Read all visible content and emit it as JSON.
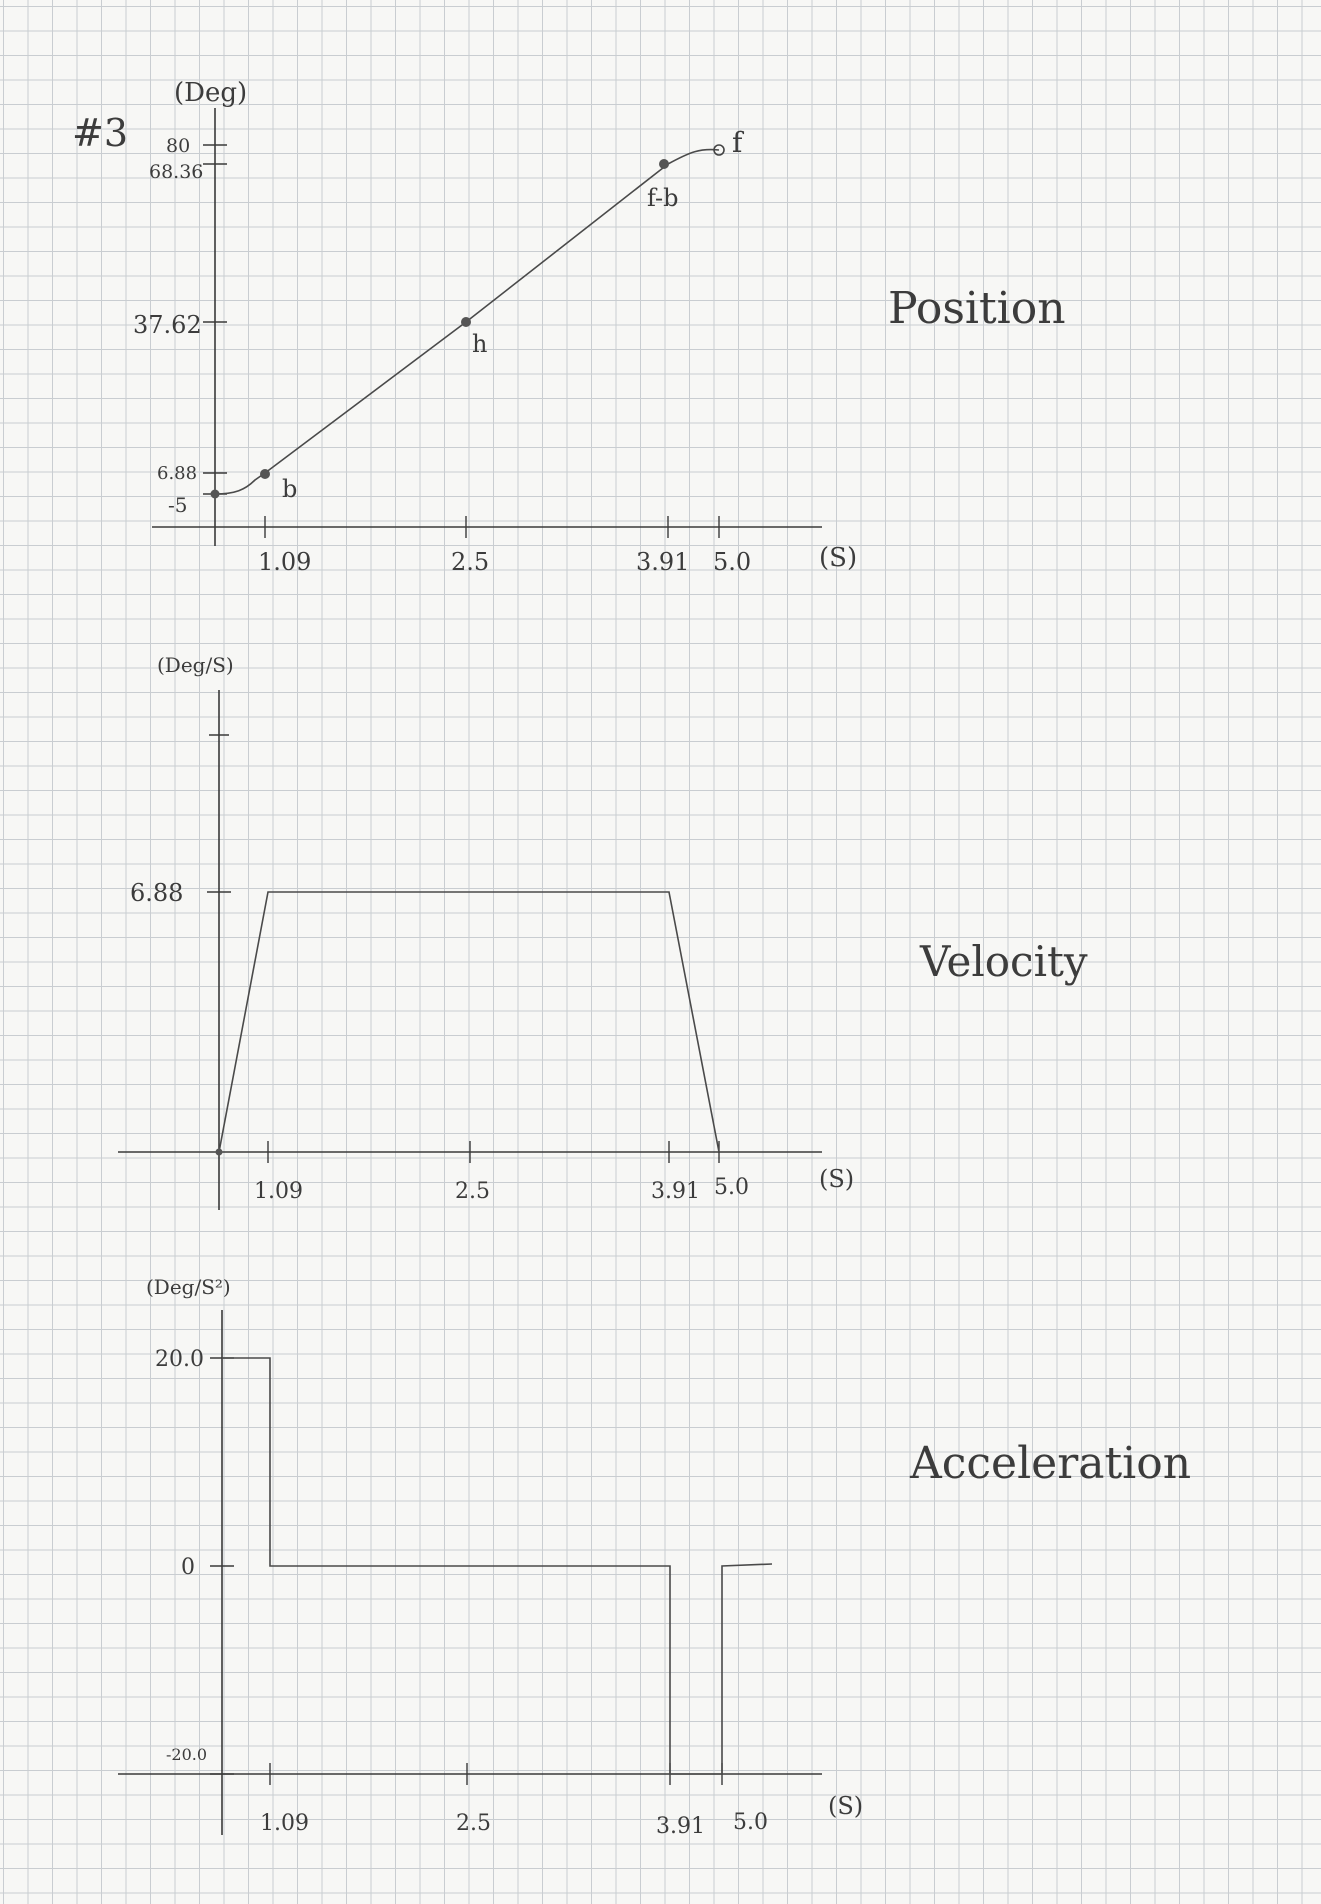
{
  "problem_label": "#3",
  "chart_data": [
    {
      "type": "line",
      "title": "Position",
      "ylabel": "(Deg)",
      "xlabel": "(S)",
      "x_ticks": [
        "1.09",
        "2.5",
        "3.91",
        "5.0"
      ],
      "y_ticks": [
        "80",
        "68.36",
        "37.62",
        "6.88",
        "-5"
      ],
      "points": [
        {
          "x": 0,
          "y": -5
        },
        {
          "x": 1.09,
          "y": 6.88
        },
        {
          "x": 2.5,
          "y": 37.62
        },
        {
          "x": 3.91,
          "y": 68.36
        },
        {
          "x": 5.0,
          "y": 80
        }
      ],
      "point_labels": [
        "b",
        "h",
        "f-b",
        "f"
      ],
      "xlim": [
        0,
        5.0
      ],
      "ylim": [
        -5,
        80
      ]
    },
    {
      "type": "line",
      "title": "Velocity",
      "ylabel": "(Deg/S)",
      "xlabel": "(S)",
      "x_ticks": [
        "1.09",
        "2.5",
        "3.91",
        "5.0"
      ],
      "y_ticks": [
        "6.88"
      ],
      "points": [
        {
          "x": 0,
          "y": 0
        },
        {
          "x": 1.09,
          "y": 6.88
        },
        {
          "x": 3.91,
          "y": 6.88
        },
        {
          "x": 5.0,
          "y": 0
        }
      ],
      "xlim": [
        0,
        5.0
      ],
      "ylim": [
        0,
        6.88
      ]
    },
    {
      "type": "line",
      "title": "Acceleration",
      "ylabel": "(Deg/S²)",
      "xlabel": "(S)",
      "x_ticks": [
        "1.09",
        "2.5",
        "3.91",
        "5.0"
      ],
      "y_ticks": [
        "20.0",
        "0",
        "-20.0"
      ],
      "points": [
        {
          "x": 0,
          "y": 20.0
        },
        {
          "x": 1.09,
          "y": 20.0
        },
        {
          "x": 1.09,
          "y": 0
        },
        {
          "x": 3.91,
          "y": 0
        },
        {
          "x": 3.91,
          "y": -20.0
        },
        {
          "x": 5.0,
          "y": -20.0
        },
        {
          "x": 5.0,
          "y": 0
        }
      ],
      "xlim": [
        0,
        5.0
      ],
      "ylim": [
        -20.0,
        20.0
      ]
    }
  ]
}
